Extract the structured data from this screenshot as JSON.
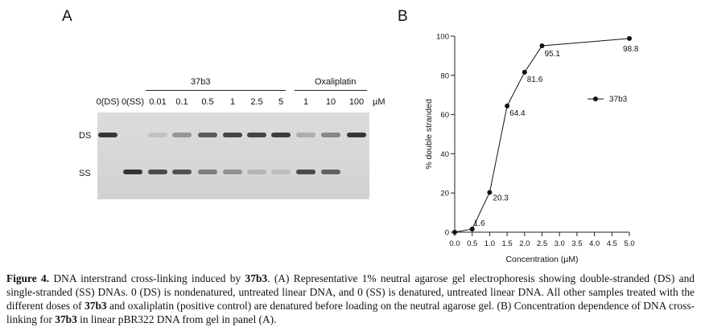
{
  "panel_a": {
    "label": "A",
    "group_37b3": "37b3",
    "group_oxaliplatin": "Oxaliplatin",
    "lanes": [
      "0(DS)",
      "0(SS)",
      "0.01",
      "0.1",
      "0.5",
      "1",
      "2.5",
      "5",
      "1",
      "10",
      "100"
    ],
    "unit": "µM",
    "row_ds": "DS",
    "row_ss": "SS",
    "band_intensity_ds": [
      1.0,
      0.0,
      0.05,
      0.35,
      0.75,
      0.9,
      0.9,
      0.95,
      0.2,
      0.45,
      1.0
    ],
    "band_intensity_ss": [
      0.0,
      1.0,
      0.85,
      0.8,
      0.5,
      0.35,
      0.12,
      0.05,
      0.85,
      0.7,
      0.0
    ]
  },
  "panel_b": {
    "label": "B"
  },
  "chart_data": {
    "type": "line",
    "x": [
      0.0,
      0.5,
      1.0,
      1.5,
      2.0,
      2.5,
      5.0
    ],
    "series": [
      {
        "name": "37b3",
        "values": [
          0,
          1.6,
          20.3,
          64.4,
          81.6,
          95.1,
          98.8
        ]
      }
    ],
    "data_labels": [
      "",
      "1.6",
      "20.3",
      "64.4",
      "81.6",
      "95.1",
      "98.8"
    ],
    "xlabel": "Concentration (µM)",
    "ylabel": "% double stranded",
    "xlim": [
      0,
      5
    ],
    "ylim": [
      0,
      100
    ],
    "xticks": [
      "0.0",
      "0.5",
      "1.0",
      "1.5",
      "2.0",
      "2.5",
      "3.0",
      "3.5",
      "4.0",
      "4.5",
      "5.0"
    ],
    "yticks": [
      "0",
      "20",
      "40",
      "60",
      "80",
      "100"
    ],
    "grid": false,
    "legend_position": "right"
  },
  "caption": {
    "figure_label": "Figure 4.",
    "title_pre": "DNA interstrand cross-linking induced by ",
    "title_compound": "37b3",
    "title_post": ".",
    "line_a1": "(A) Representative 1% neutral agarose gel electrophoresis showing double-stranded (DS) and single-stranded (SS) DNAs. 0 (DS) is nondenatured, untreated linear DNA, and 0 (SS) is denatured, untreated linear DNA. All other samples treated with the different doses of ",
    "compound": "37b3",
    "line_a2": " and oxaliplatin (positive control) are denatured before loading on the neutral agarose gel. (B) Concentration dependence of DNA cross-linking for ",
    "line_b2": " in linear pBR322 DNA from gel in panel (A)."
  }
}
